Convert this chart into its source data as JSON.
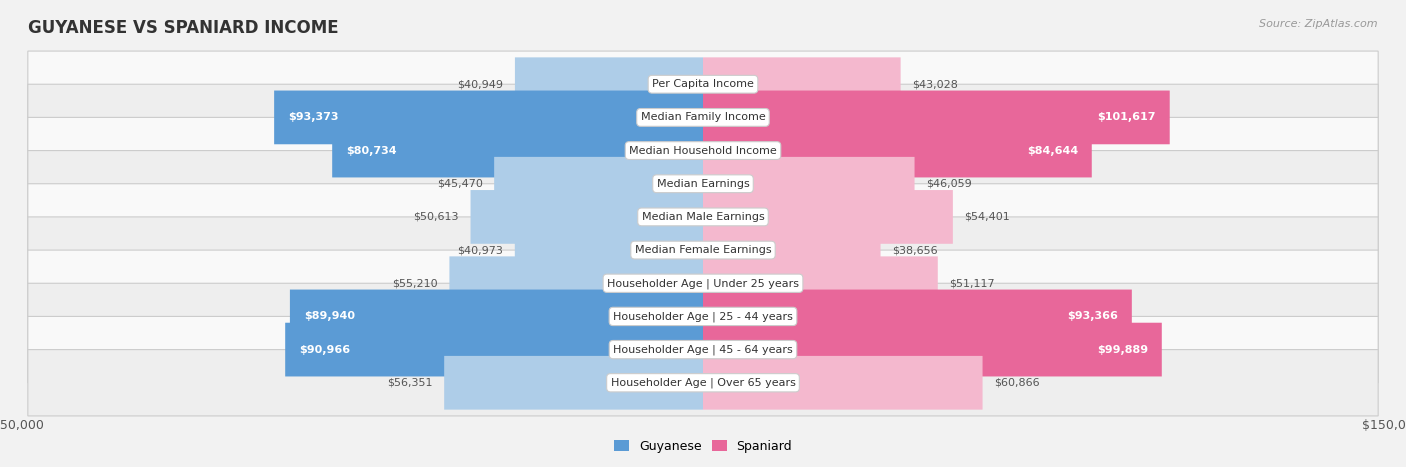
{
  "title": "GUYANESE VS SPANIARD INCOME",
  "source": "Source: ZipAtlas.com",
  "categories": [
    "Per Capita Income",
    "Median Family Income",
    "Median Household Income",
    "Median Earnings",
    "Median Male Earnings",
    "Median Female Earnings",
    "Householder Age | Under 25 years",
    "Householder Age | 25 - 44 years",
    "Householder Age | 45 - 64 years",
    "Householder Age | Over 65 years"
  ],
  "guyanese_values": [
    40949,
    93373,
    80734,
    45470,
    50613,
    40973,
    55210,
    89940,
    90966,
    56351
  ],
  "spaniard_values": [
    43028,
    101617,
    84644,
    46059,
    54401,
    38656,
    51117,
    93366,
    99889,
    60866
  ],
  "guyanese_labels": [
    "$40,949",
    "$93,373",
    "$80,734",
    "$45,470",
    "$50,613",
    "$40,973",
    "$55,210",
    "$89,940",
    "$90,966",
    "$56,351"
  ],
  "spaniard_labels": [
    "$43,028",
    "$101,617",
    "$84,644",
    "$46,059",
    "$54,401",
    "$38,656",
    "$51,117",
    "$93,366",
    "$99,889",
    "$60,866"
  ],
  "guyanese_color_light": "#AECDE8",
  "guyanese_color_dark": "#5B9BD5",
  "spaniard_color_light": "#F4B8CE",
  "spaniard_color_dark": "#E8679A",
  "max_value": 150000,
  "bar_height": 0.62,
  "background_color": "#f2f2f2",
  "row_bg_even": "#f9f9f9",
  "row_bg_odd": "#eeeeee",
  "title_fontsize": 12,
  "label_fontsize": 8,
  "category_fontsize": 8,
  "axis_fontsize": 9,
  "guy_dark_threshold": 75000,
  "spa_dark_threshold": 75000
}
